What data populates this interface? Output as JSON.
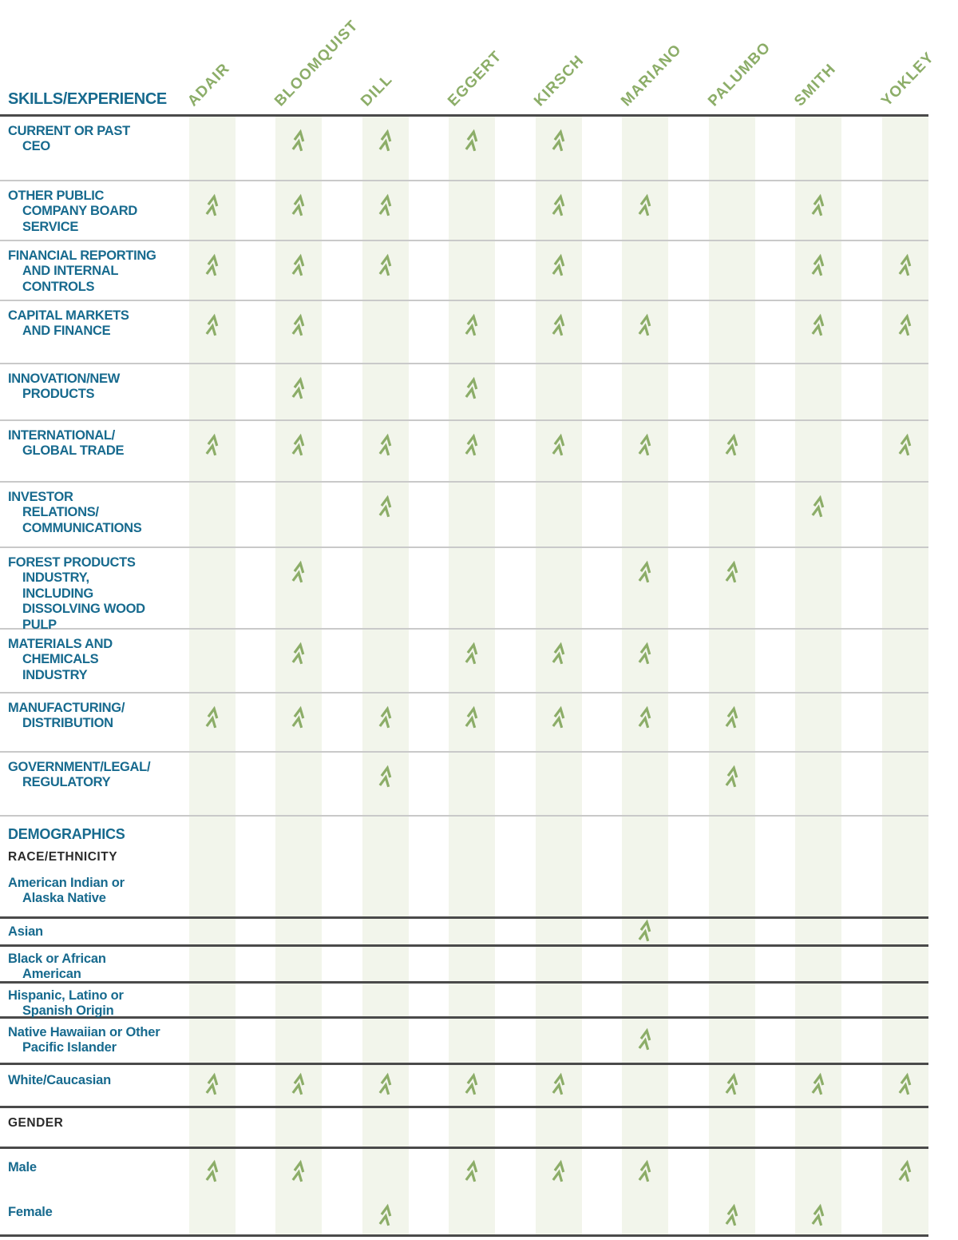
{
  "table": {
    "title": "SKILLS/EXPERIENCE",
    "columns": [
      "ADAIR",
      "BLOOMQUIST",
      "DILL",
      "EGGERT",
      "KIRSCH",
      "MARIANO",
      "PALUMBO",
      "SMITH",
      "YOKLEY"
    ],
    "check_icon": "double-chevron-up",
    "colors": {
      "accent_teal": "#176a8e",
      "accent_green": "#8cad68",
      "column_stripe": "#f2f5eb",
      "divider_light": "#c9c9c9",
      "divider_dark": "#4a4a4a",
      "heading_dark": "#2b2b2b"
    },
    "rows": [
      {
        "label": "CURRENT OR PAST\nCEO",
        "type": "skills",
        "checks": [
          0,
          1,
          1,
          1,
          1,
          0,
          0,
          0,
          0
        ]
      },
      {
        "label": "OTHER PUBLIC\nCOMPANY BOARD\nSERVICE",
        "type": "skills",
        "checks": [
          1,
          1,
          1,
          0,
          1,
          1,
          0,
          1,
          0
        ]
      },
      {
        "label": "FINANCIAL REPORTING\nAND INTERNAL\nCONTROLS",
        "type": "skills",
        "checks": [
          1,
          1,
          1,
          0,
          1,
          0,
          0,
          1,
          1
        ]
      },
      {
        "label": "CAPITAL MARKETS\nAND FINANCE",
        "type": "skills",
        "checks": [
          1,
          1,
          0,
          1,
          1,
          1,
          0,
          1,
          1
        ]
      },
      {
        "label": "INNOVATION/NEW\nPRODUCTS",
        "type": "skills",
        "checks": [
          0,
          1,
          0,
          1,
          0,
          0,
          0,
          0,
          0
        ]
      },
      {
        "label": "INTERNATIONAL/\nGLOBAL TRADE",
        "type": "skills",
        "checks": [
          1,
          1,
          1,
          1,
          1,
          1,
          1,
          0,
          1
        ]
      },
      {
        "label": "INVESTOR\nRELATIONS/\nCOMMUNICATIONS",
        "type": "skills",
        "checks": [
          0,
          0,
          1,
          0,
          0,
          0,
          0,
          1,
          0
        ]
      },
      {
        "label": "FOREST PRODUCTS\nINDUSTRY,\nINCLUDING\nDISSOLVING WOOD\nPULP",
        "type": "skills",
        "checks": [
          0,
          1,
          0,
          0,
          0,
          1,
          1,
          0,
          0
        ]
      },
      {
        "label": "MATERIALS AND\nCHEMICALS\nINDUSTRY",
        "type": "skills",
        "checks": [
          0,
          1,
          0,
          1,
          1,
          1,
          0,
          0,
          0
        ]
      },
      {
        "label": "MANUFACTURING/\nDISTRIBUTION",
        "type": "skills",
        "checks": [
          1,
          1,
          1,
          1,
          1,
          1,
          1,
          0,
          0
        ]
      },
      {
        "label": "GOVERNMENT/LEGAL/\nREGULATORY",
        "type": "skills",
        "checks": [
          0,
          0,
          1,
          0,
          0,
          0,
          1,
          0,
          0
        ]
      },
      {
        "label": "DEMOGRAPHICS",
        "type": "section",
        "checks": []
      },
      {
        "label": "RACE/ETHNICITY",
        "type": "subsection",
        "checks": []
      },
      {
        "label": "American Indian or\nAlaska Native",
        "type": "demo",
        "checks": [
          0,
          0,
          0,
          0,
          0,
          0,
          0,
          0,
          0
        ]
      },
      {
        "label": "Asian",
        "type": "demo",
        "checks": [
          0,
          0,
          0,
          0,
          0,
          1,
          0,
          0,
          0
        ]
      },
      {
        "label": "Black or African\nAmerican",
        "type": "demo",
        "checks": [
          0,
          0,
          0,
          0,
          0,
          0,
          0,
          0,
          0
        ]
      },
      {
        "label": "Hispanic, Latino or\nSpanish Origin",
        "type": "demo",
        "checks": [
          0,
          0,
          0,
          0,
          0,
          0,
          0,
          0,
          0
        ]
      },
      {
        "label": "Native Hawaiian or Other\nPacific Islander",
        "type": "demo",
        "checks": [
          0,
          0,
          0,
          0,
          0,
          1,
          0,
          0,
          0
        ]
      },
      {
        "label": "White/Caucasian",
        "type": "demo",
        "checks": [
          1,
          1,
          1,
          1,
          1,
          0,
          1,
          1,
          1
        ]
      },
      {
        "label": "GENDER",
        "type": "subsection",
        "checks": []
      },
      {
        "label": "Male",
        "type": "demo",
        "checks": [
          1,
          1,
          0,
          1,
          1,
          1,
          0,
          0,
          1
        ]
      },
      {
        "label": "Female",
        "type": "demo",
        "checks": [
          0,
          0,
          1,
          0,
          0,
          0,
          1,
          1,
          0
        ]
      }
    ]
  }
}
